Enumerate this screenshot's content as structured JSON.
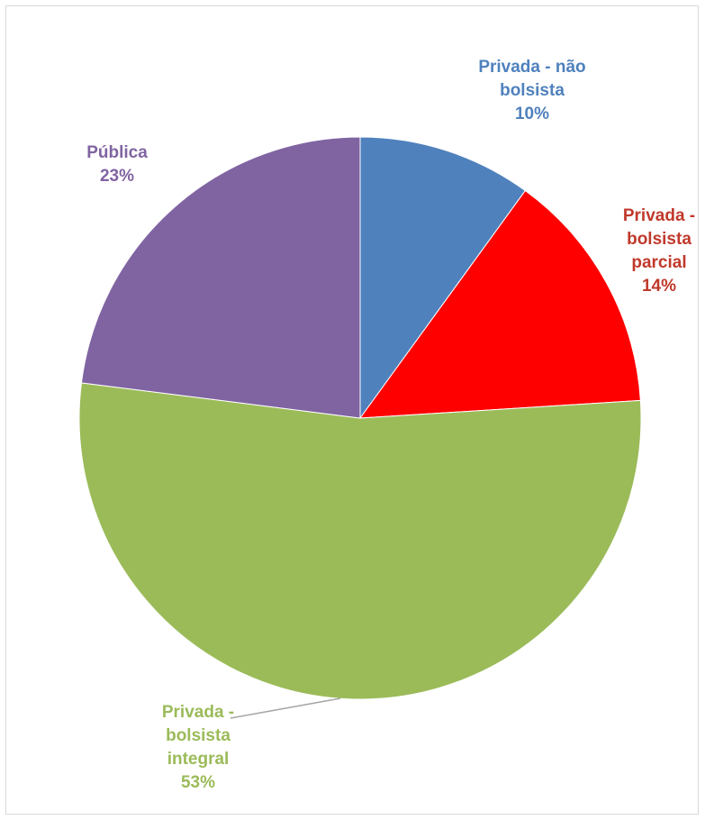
{
  "chart_data": {
    "type": "pie",
    "slices": [
      {
        "label_lines": [
          "Privada - não",
          "bolsista"
        ],
        "pct_text": "10%",
        "value": 10,
        "color": "#4f81bd",
        "label_color": "#4f81bd"
      },
      {
        "label_lines": [
          "Privada -",
          "bolsista",
          "parcial"
        ],
        "pct_text": "14%",
        "value": 14,
        "color": "#ff0000",
        "label_color": "#c0392b"
      },
      {
        "label_lines": [
          "Privada -",
          "bolsista",
          "integral"
        ],
        "pct_text": "53%",
        "value": 53,
        "color": "#9bbb59",
        "label_color": "#9bbb59"
      },
      {
        "label_lines": [
          "Pública"
        ],
        "pct_text": "23%",
        "value": 23,
        "color": "#8064a2",
        "label_color": "#8064a2"
      }
    ]
  }
}
